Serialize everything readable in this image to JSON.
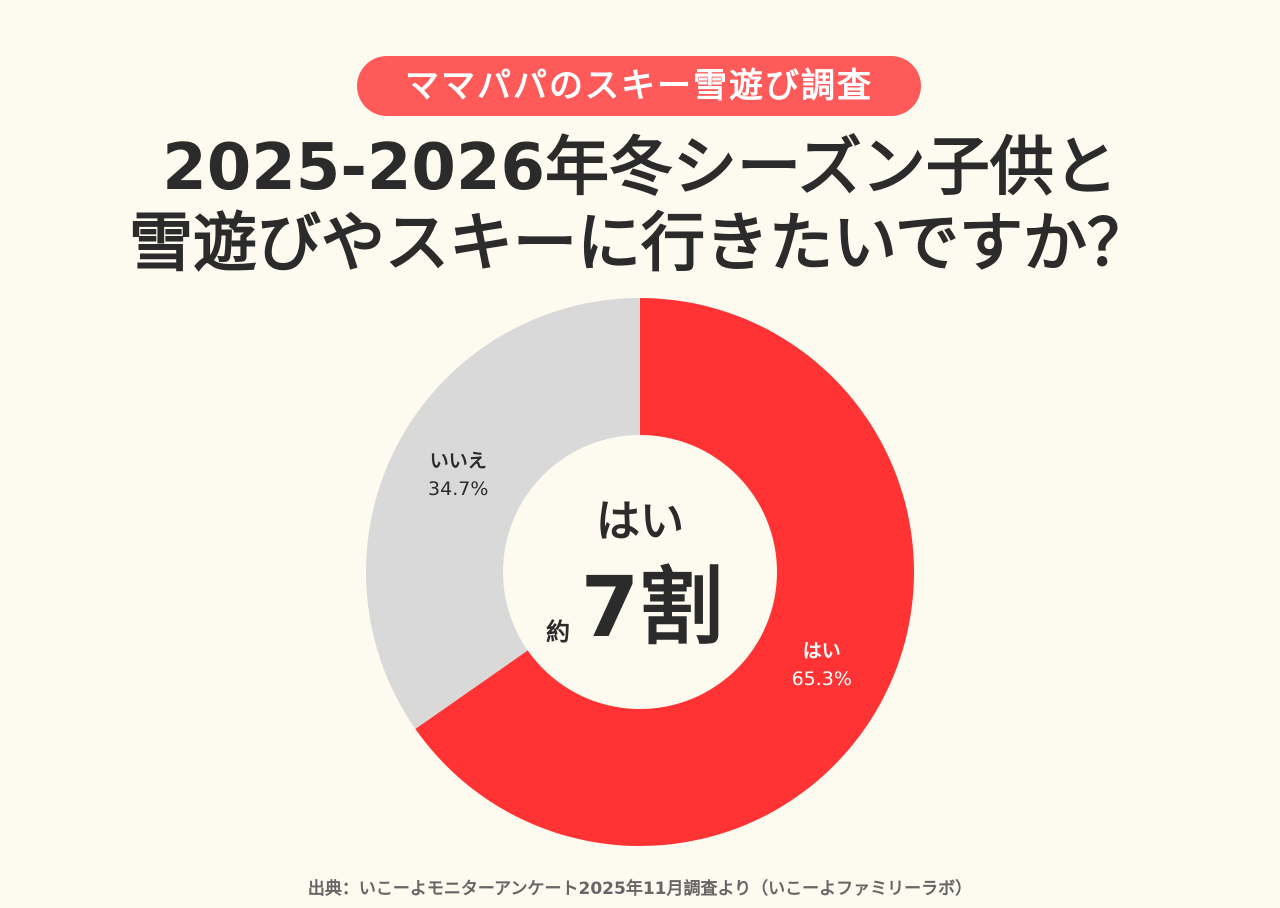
{
  "badge": "ママパパのスキー雪遊び調査",
  "title_line1": "2025-2026年冬シーズン子供と",
  "title_line2": "雪遊びやスキーに行きたいですか？",
  "center": {
    "label": "はい",
    "prefix": "約",
    "value": "7割"
  },
  "footer": "出典：いこーよモニターアンケート2025年11月調査より（いこーよファミリーラボ）",
  "chart_data": {
    "type": "pie",
    "donut": true,
    "categories": [
      "はい",
      "いいえ"
    ],
    "values": [
      65.3,
      34.7
    ],
    "labels": [
      "65.3%",
      "34.7%"
    ],
    "colors": [
      "#ff3333",
      "#d9d9d9"
    ],
    "start": "top",
    "direction": "clockwise"
  }
}
